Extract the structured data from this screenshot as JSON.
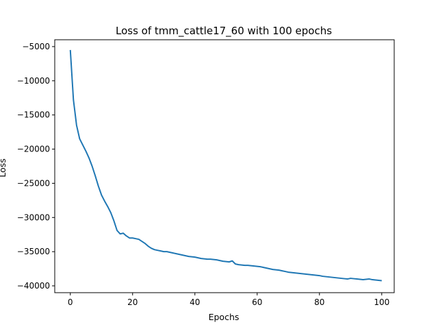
{
  "chart_data": {
    "type": "line",
    "title": "Loss of tmm_cattle17_60 with 100 epochs",
    "xlabel": "Epochs",
    "ylabel": "Loss",
    "xlim": [
      -5,
      104
    ],
    "ylim": [
      -41000,
      -4000
    ],
    "xticks": [
      0,
      20,
      40,
      60,
      80,
      100
    ],
    "yticks": [
      -5000,
      -10000,
      -15000,
      -20000,
      -25000,
      -30000,
      -35000,
      -40000
    ],
    "grid": false,
    "line_color": "#1f77b4",
    "series": [
      {
        "x": [
          0,
          1,
          2,
          3,
          4,
          5,
          6,
          7,
          8,
          9,
          10,
          11,
          12,
          13,
          14,
          15,
          16,
          17,
          18,
          19,
          20,
          21,
          22,
          23,
          24,
          25,
          26,
          27,
          28,
          29,
          30,
          31,
          32,
          33,
          34,
          35,
          36,
          37,
          38,
          39,
          40,
          41,
          42,
          43,
          44,
          45,
          46,
          47,
          48,
          49,
          50,
          51,
          52,
          53,
          54,
          55,
          56,
          57,
          58,
          59,
          60,
          61,
          62,
          63,
          64,
          65,
          66,
          67,
          68,
          69,
          70,
          71,
          72,
          73,
          74,
          75,
          76,
          77,
          78,
          79,
          80,
          81,
          82,
          83,
          84,
          85,
          86,
          87,
          88,
          89,
          90,
          91,
          92,
          93,
          94,
          95,
          96,
          97,
          98,
          99,
          100
        ],
        "y": [
          -5500,
          -12800,
          -16500,
          -18500,
          -19400,
          -20300,
          -21300,
          -22500,
          -23900,
          -25400,
          -26700,
          -27600,
          -28400,
          -29300,
          -30500,
          -31900,
          -32400,
          -32300,
          -32700,
          -33000,
          -33000,
          -33100,
          -33200,
          -33500,
          -33800,
          -34200,
          -34500,
          -34700,
          -34800,
          -34900,
          -35000,
          -35000,
          -35100,
          -35200,
          -35300,
          -35400,
          -35500,
          -35600,
          -35700,
          -35750,
          -35800,
          -35900,
          -36000,
          -36050,
          -36100,
          -36100,
          -36150,
          -36200,
          -36300,
          -36400,
          -36450,
          -36500,
          -36350,
          -36800,
          -36900,
          -36950,
          -37000,
          -37000,
          -37050,
          -37100,
          -37150,
          -37200,
          -37300,
          -37400,
          -37500,
          -37600,
          -37650,
          -37700,
          -37800,
          -37900,
          -38000,
          -38050,
          -38100,
          -38150,
          -38200,
          -38250,
          -38300,
          -38350,
          -38400,
          -38450,
          -38500,
          -38600,
          -38650,
          -38700,
          -38750,
          -38800,
          -38850,
          -38900,
          -38950,
          -39000,
          -38900,
          -38950,
          -39000,
          -39050,
          -39100,
          -39050,
          -39000,
          -39100,
          -39150,
          -39200,
          -39250
        ]
      }
    ]
  }
}
